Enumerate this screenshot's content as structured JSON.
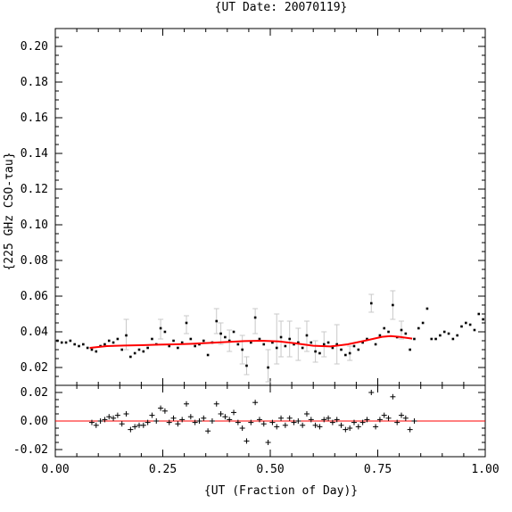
{
  "chart_data": [
    {
      "type": "scatter",
      "title": "{UT Date: 20070119}",
      "ylabel": "{225 GHz CSO-τau}",
      "xlabel": "",
      "xlim": [
        0.0,
        1.0
      ],
      "ylim": [
        0.01,
        0.21
      ],
      "yticks": [
        "0.02",
        "0.04",
        "0.06",
        "0.08",
        "0.10",
        "0.12",
        "0.14",
        "0.16",
        "0.18",
        "0.20"
      ],
      "xticks": [],
      "grid": false,
      "colors": {
        "points": "#000000",
        "errorbars": "#c8c8c8",
        "fit": "#ff0000"
      },
      "series": [
        {
          "points": [
            {
              "x": 0.005,
              "y": 0.035
            },
            {
              "x": 0.015,
              "y": 0.034
            },
            {
              "x": 0.025,
              "y": 0.034
            },
            {
              "x": 0.035,
              "y": 0.035
            },
            {
              "x": 0.045,
              "y": 0.033
            },
            {
              "x": 0.055,
              "y": 0.032
            },
            {
              "x": 0.065,
              "y": 0.033
            },
            {
              "x": 0.075,
              "y": 0.031
            },
            {
              "x": 0.085,
              "y": 0.03
            },
            {
              "x": 0.095,
              "y": 0.029
            },
            {
              "x": 0.105,
              "y": 0.032
            },
            {
              "x": 0.115,
              "y": 0.033
            },
            {
              "x": 0.125,
              "y": 0.035
            },
            {
              "x": 0.135,
              "y": 0.034
            },
            {
              "x": 0.145,
              "y": 0.036
            },
            {
              "x": 0.155,
              "y": 0.03
            },
            {
              "x": 0.165,
              "y": 0.038
            },
            {
              "x": 0.175,
              "y": 0.026
            },
            {
              "x": 0.185,
              "y": 0.028
            },
            {
              "x": 0.195,
              "y": 0.03
            },
            {
              "x": 0.205,
              "y": 0.029
            },
            {
              "x": 0.215,
              "y": 0.031
            },
            {
              "x": 0.225,
              "y": 0.036
            },
            {
              "x": 0.235,
              "y": 0.033
            },
            {
              "x": 0.245,
              "y": 0.042
            },
            {
              "x": 0.255,
              "y": 0.04
            },
            {
              "x": 0.265,
              "y": 0.032
            },
            {
              "x": 0.275,
              "y": 0.035
            },
            {
              "x": 0.285,
              "y": 0.031
            },
            {
              "x": 0.295,
              "y": 0.034
            },
            {
              "x": 0.305,
              "y": 0.045
            },
            {
              "x": 0.315,
              "y": 0.036
            },
            {
              "x": 0.325,
              "y": 0.032
            },
            {
              "x": 0.335,
              "y": 0.033
            },
            {
              "x": 0.345,
              "y": 0.035
            },
            {
              "x": 0.355,
              "y": 0.027
            },
            {
              "x": 0.365,
              "y": 0.034
            },
            {
              "x": 0.375,
              "y": 0.046
            },
            {
              "x": 0.385,
              "y": 0.039
            },
            {
              "x": 0.395,
              "y": 0.037
            },
            {
              "x": 0.405,
              "y": 0.035
            },
            {
              "x": 0.415,
              "y": 0.04
            },
            {
              "x": 0.425,
              "y": 0.033
            },
            {
              "x": 0.435,
              "y": 0.03
            },
            {
              "x": 0.445,
              "y": 0.021
            },
            {
              "x": 0.455,
              "y": 0.034
            },
            {
              "x": 0.465,
              "y": 0.048
            },
            {
              "x": 0.475,
              "y": 0.036
            },
            {
              "x": 0.485,
              "y": 0.033
            },
            {
              "x": 0.495,
              "y": 0.02
            },
            {
              "x": 0.505,
              "y": 0.034
            },
            {
              "x": 0.515,
              "y": 0.031
            },
            {
              "x": 0.525,
              "y": 0.037
            },
            {
              "x": 0.535,
              "y": 0.032
            },
            {
              "x": 0.545,
              "y": 0.036
            },
            {
              "x": 0.555,
              "y": 0.033
            },
            {
              "x": 0.565,
              "y": 0.034
            },
            {
              "x": 0.575,
              "y": 0.031
            },
            {
              "x": 0.585,
              "y": 0.038
            },
            {
              "x": 0.595,
              "y": 0.034
            },
            {
              "x": 0.605,
              "y": 0.029
            },
            {
              "x": 0.615,
              "y": 0.028
            },
            {
              "x": 0.625,
              "y": 0.033
            },
            {
              "x": 0.635,
              "y": 0.034
            },
            {
              "x": 0.645,
              "y": 0.031
            },
            {
              "x": 0.655,
              "y": 0.033
            },
            {
              "x": 0.665,
              "y": 0.03
            },
            {
              "x": 0.675,
              "y": 0.027
            },
            {
              "x": 0.685,
              "y": 0.028
            },
            {
              "x": 0.695,
              "y": 0.032
            },
            {
              "x": 0.705,
              "y": 0.03
            },
            {
              "x": 0.715,
              "y": 0.034
            },
            {
              "x": 0.725,
              "y": 0.036
            },
            {
              "x": 0.735,
              "y": 0.056
            },
            {
              "x": 0.745,
              "y": 0.033
            },
            {
              "x": 0.755,
              "y": 0.038
            },
            {
              "x": 0.765,
              "y": 0.042
            },
            {
              "x": 0.775,
              "y": 0.04
            },
            {
              "x": 0.785,
              "y": 0.055
            },
            {
              "x": 0.795,
              "y": 0.037
            },
            {
              "x": 0.805,
              "y": 0.041
            },
            {
              "x": 0.815,
              "y": 0.039
            },
            {
              "x": 0.825,
              "y": 0.03
            },
            {
              "x": 0.835,
              "y": 0.036
            },
            {
              "x": 0.845,
              "y": 0.042
            },
            {
              "x": 0.855,
              "y": 0.045
            },
            {
              "x": 0.865,
              "y": 0.053
            },
            {
              "x": 0.875,
              "y": 0.036
            },
            {
              "x": 0.885,
              "y": 0.036
            },
            {
              "x": 0.895,
              "y": 0.038
            },
            {
              "x": 0.905,
              "y": 0.04
            },
            {
              "x": 0.915,
              "y": 0.039
            },
            {
              "x": 0.925,
              "y": 0.036
            },
            {
              "x": 0.935,
              "y": 0.038
            },
            {
              "x": 0.945,
              "y": 0.043
            },
            {
              "x": 0.955,
              "y": 0.045
            },
            {
              "x": 0.965,
              "y": 0.044
            },
            {
              "x": 0.975,
              "y": 0.041
            },
            {
              "x": 0.985,
              "y": 0.05
            },
            {
              "x": 0.995,
              "y": 0.047
            }
          ],
          "errors": [
            {
              "x": 0.165,
              "lo": 0.03,
              "hi": 0.047
            },
            {
              "x": 0.245,
              "lo": 0.036,
              "hi": 0.047
            },
            {
              "x": 0.305,
              "lo": 0.039,
              "hi": 0.049
            },
            {
              "x": 0.375,
              "lo": 0.039,
              "hi": 0.053
            },
            {
              "x": 0.385,
              "lo": 0.033,
              "hi": 0.045
            },
            {
              "x": 0.405,
              "lo": 0.029,
              "hi": 0.041
            },
            {
              "x": 0.435,
              "lo": 0.022,
              "hi": 0.038
            },
            {
              "x": 0.445,
              "lo": 0.016,
              "hi": 0.026
            },
            {
              "x": 0.465,
              "lo": 0.039,
              "hi": 0.053
            },
            {
              "x": 0.495,
              "lo": 0.012,
              "hi": 0.03
            },
            {
              "x": 0.515,
              "lo": 0.022,
              "hi": 0.05
            },
            {
              "x": 0.525,
              "lo": 0.026,
              "hi": 0.046
            },
            {
              "x": 0.545,
              "lo": 0.026,
              "hi": 0.046
            },
            {
              "x": 0.565,
              "lo": 0.024,
              "hi": 0.042
            },
            {
              "x": 0.585,
              "lo": 0.029,
              "hi": 0.046
            },
            {
              "x": 0.605,
              "lo": 0.023,
              "hi": 0.035
            },
            {
              "x": 0.625,
              "lo": 0.026,
              "hi": 0.04
            },
            {
              "x": 0.655,
              "lo": 0.022,
              "hi": 0.044
            },
            {
              "x": 0.685,
              "lo": 0.024,
              "hi": 0.032
            },
            {
              "x": 0.735,
              "lo": 0.051,
              "hi": 0.061
            },
            {
              "x": 0.785,
              "lo": 0.047,
              "hi": 0.063
            },
            {
              "x": 0.805,
              "lo": 0.036,
              "hi": 0.046
            }
          ],
          "fit": [
            {
              "x": 0.08,
              "y": 0.031
            },
            {
              "x": 0.12,
              "y": 0.032
            },
            {
              "x": 0.16,
              "y": 0.0323
            },
            {
              "x": 0.2,
              "y": 0.0325
            },
            {
              "x": 0.24,
              "y": 0.0328
            },
            {
              "x": 0.28,
              "y": 0.033
            },
            {
              "x": 0.32,
              "y": 0.0333
            },
            {
              "x": 0.36,
              "y": 0.0338
            },
            {
              "x": 0.4,
              "y": 0.0343
            },
            {
              "x": 0.44,
              "y": 0.0348
            },
            {
              "x": 0.48,
              "y": 0.035
            },
            {
              "x": 0.52,
              "y": 0.0346
            },
            {
              "x": 0.56,
              "y": 0.0335
            },
            {
              "x": 0.6,
              "y": 0.0322
            },
            {
              "x": 0.64,
              "y": 0.0318
            },
            {
              "x": 0.68,
              "y": 0.033
            },
            {
              "x": 0.72,
              "y": 0.035
            },
            {
              "x": 0.76,
              "y": 0.0372
            },
            {
              "x": 0.78,
              "y": 0.0376
            },
            {
              "x": 0.8,
              "y": 0.0372
            },
            {
              "x": 0.83,
              "y": 0.0362
            }
          ]
        }
      ]
    },
    {
      "type": "scatter",
      "title": "",
      "xlabel": "{UT (Fraction of Day)}",
      "ylabel": "",
      "xlim": [
        0.0,
        1.0
      ],
      "ylim": [
        -0.025,
        0.025
      ],
      "xticks": [
        "0.00",
        "0.25",
        "0.50",
        "0.75",
        "1.00"
      ],
      "yticks": [
        "-0.02",
        "0.00",
        "0.02"
      ],
      "grid": false,
      "colors": {
        "points": "#000000",
        "zero_line": "#ff0000"
      },
      "series": [
        {
          "residuals": [
            {
              "x": 0.085,
              "y": -0.001
            },
            {
              "x": 0.095,
              "y": -0.003
            },
            {
              "x": 0.105,
              "y": 0.0
            },
            {
              "x": 0.115,
              "y": 0.001
            },
            {
              "x": 0.125,
              "y": 0.003
            },
            {
              "x": 0.135,
              "y": 0.002
            },
            {
              "x": 0.145,
              "y": 0.004
            },
            {
              "x": 0.155,
              "y": -0.002
            },
            {
              "x": 0.165,
              "y": 0.005
            },
            {
              "x": 0.175,
              "y": -0.006
            },
            {
              "x": 0.185,
              "y": -0.004
            },
            {
              "x": 0.195,
              "y": -0.003
            },
            {
              "x": 0.205,
              "y": -0.003
            },
            {
              "x": 0.215,
              "y": -0.001
            },
            {
              "x": 0.225,
              "y": 0.004
            },
            {
              "x": 0.235,
              "y": 0.0
            },
            {
              "x": 0.245,
              "y": 0.009
            },
            {
              "x": 0.255,
              "y": 0.007
            },
            {
              "x": 0.265,
              "y": -0.001
            },
            {
              "x": 0.275,
              "y": 0.002
            },
            {
              "x": 0.285,
              "y": -0.002
            },
            {
              "x": 0.295,
              "y": 0.001
            },
            {
              "x": 0.305,
              "y": 0.012
            },
            {
              "x": 0.315,
              "y": 0.003
            },
            {
              "x": 0.325,
              "y": -0.001
            },
            {
              "x": 0.335,
              "y": 0.0
            },
            {
              "x": 0.345,
              "y": 0.002
            },
            {
              "x": 0.355,
              "y": -0.007
            },
            {
              "x": 0.365,
              "y": 0.0
            },
            {
              "x": 0.375,
              "y": 0.012
            },
            {
              "x": 0.385,
              "y": 0.005
            },
            {
              "x": 0.395,
              "y": 0.003
            },
            {
              "x": 0.405,
              "y": 0.001
            },
            {
              "x": 0.415,
              "y": 0.006
            },
            {
              "x": 0.425,
              "y": -0.001
            },
            {
              "x": 0.435,
              "y": -0.005
            },
            {
              "x": 0.445,
              "y": -0.014
            },
            {
              "x": 0.455,
              "y": -0.001
            },
            {
              "x": 0.465,
              "y": 0.013
            },
            {
              "x": 0.475,
              "y": 0.001
            },
            {
              "x": 0.485,
              "y": -0.002
            },
            {
              "x": 0.495,
              "y": -0.015
            },
            {
              "x": 0.505,
              "y": -0.001
            },
            {
              "x": 0.515,
              "y": -0.004
            },
            {
              "x": 0.525,
              "y": 0.002
            },
            {
              "x": 0.535,
              "y": -0.003
            },
            {
              "x": 0.545,
              "y": 0.002
            },
            {
              "x": 0.555,
              "y": -0.001
            },
            {
              "x": 0.565,
              "y": 0.0
            },
            {
              "x": 0.575,
              "y": -0.003
            },
            {
              "x": 0.585,
              "y": 0.005
            },
            {
              "x": 0.595,
              "y": 0.001
            },
            {
              "x": 0.605,
              "y": -0.003
            },
            {
              "x": 0.615,
              "y": -0.004
            },
            {
              "x": 0.625,
              "y": 0.001
            },
            {
              "x": 0.635,
              "y": 0.002
            },
            {
              "x": 0.645,
              "y": -0.001
            },
            {
              "x": 0.655,
              "y": 0.001
            },
            {
              "x": 0.665,
              "y": -0.003
            },
            {
              "x": 0.675,
              "y": -0.006
            },
            {
              "x": 0.685,
              "y": -0.005
            },
            {
              "x": 0.695,
              "y": -0.001
            },
            {
              "x": 0.705,
              "y": -0.004
            },
            {
              "x": 0.715,
              "y": -0.001
            },
            {
              "x": 0.725,
              "y": 0.001
            },
            {
              "x": 0.735,
              "y": 0.02
            },
            {
              "x": 0.745,
              "y": -0.004
            },
            {
              "x": 0.755,
              "y": 0.001
            },
            {
              "x": 0.765,
              "y": 0.004
            },
            {
              "x": 0.775,
              "y": 0.002
            },
            {
              "x": 0.785,
              "y": 0.017
            },
            {
              "x": 0.795,
              "y": -0.001
            },
            {
              "x": 0.805,
              "y": 0.004
            },
            {
              "x": 0.815,
              "y": 0.002
            },
            {
              "x": 0.825,
              "y": -0.006
            },
            {
              "x": 0.835,
              "y": 0.0
            }
          ]
        }
      ]
    }
  ]
}
